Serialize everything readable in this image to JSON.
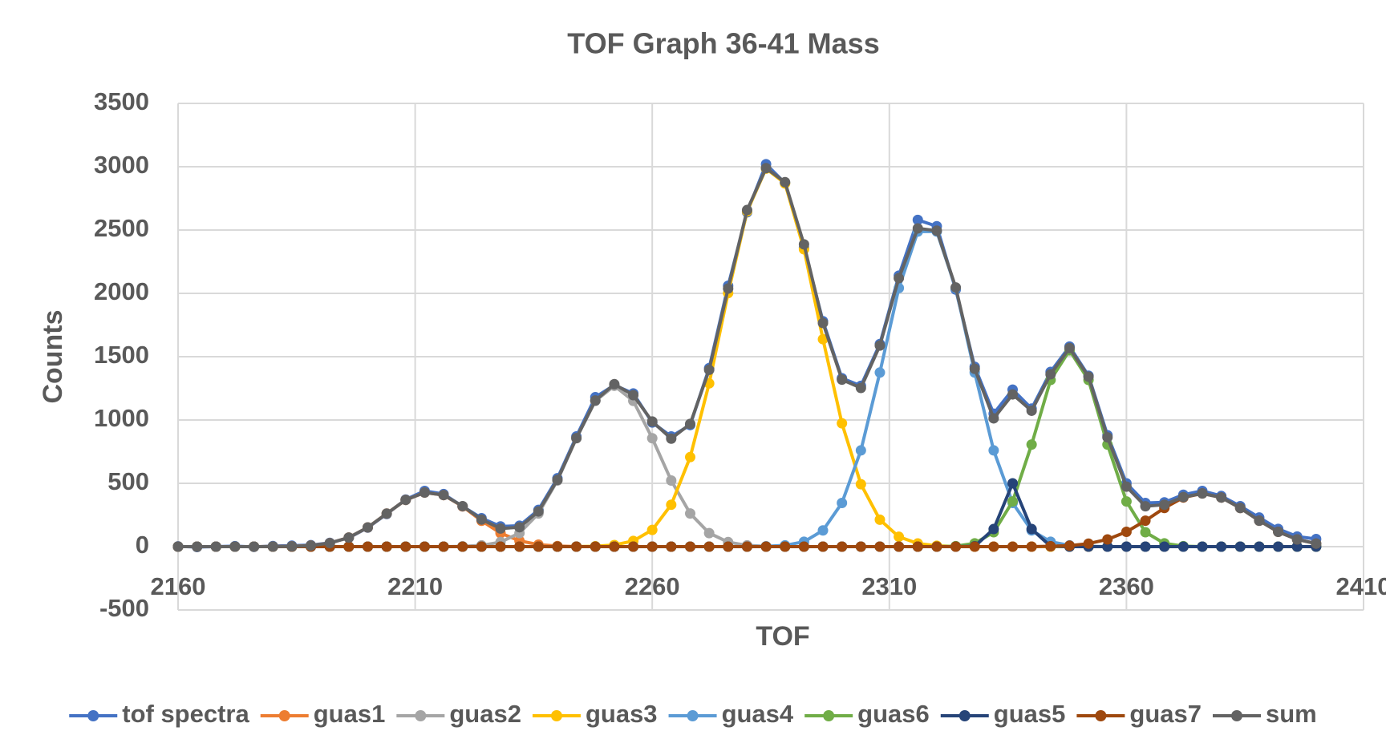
{
  "chart_data": {
    "type": "line",
    "title": "TOF Graph 36-41 Mass",
    "x_label": "TOF",
    "y_label": "Counts",
    "x": [
      2160,
      2164,
      2168,
      2172,
      2176,
      2180,
      2184,
      2188,
      2192,
      2196,
      2200,
      2204,
      2208,
      2212,
      2216,
      2220,
      2224,
      2228,
      2232,
      2236,
      2240,
      2244,
      2248,
      2252,
      2256,
      2260,
      2264,
      2268,
      2272,
      2276,
      2280,
      2284,
      2288,
      2292,
      2296,
      2300,
      2304,
      2308,
      2312,
      2316,
      2320,
      2324,
      2328,
      2332,
      2336,
      2340,
      2344,
      2348,
      2352,
      2356,
      2360,
      2364,
      2368,
      2372,
      2376,
      2380,
      2384,
      2388,
      2392,
      2396,
      2400
    ],
    "xlim": [
      2160,
      2410
    ],
    "xticks": [
      2160,
      2210,
      2260,
      2310,
      2360,
      2410
    ],
    "ylim": [
      -500,
      3500
    ],
    "yticks": [
      -500,
      0,
      500,
      1000,
      1500,
      2000,
      2500,
      3000,
      3500
    ],
    "grid": true,
    "legend": "bottom",
    "series": [
      {
        "name": "tof spectra",
        "color": "#4472c4",
        "values": [
          2,
          -3,
          0,
          4,
          -2,
          5,
          8,
          12,
          30,
          70,
          150,
          258,
          372,
          440,
          415,
          318,
          225,
          160,
          165,
          290,
          540,
          870,
          1180,
          1275,
          1210,
          980,
          870,
          960,
          1410,
          2060,
          2640,
          3020,
          2870,
          2360,
          1780,
          1330,
          1270,
          1600,
          2140,
          2580,
          2530,
          2030,
          1420,
          1050,
          1240,
          1090,
          1380,
          1580,
          1350,
          880,
          500,
          345,
          350,
          410,
          440,
          400,
          320,
          230,
          140,
          80,
          60
        ]
      },
      {
        "name": "guas1",
        "color": "#ed7d31",
        "values": [
          0,
          0,
          0,
          0,
          0,
          1,
          2,
          9,
          28,
          72,
          152,
          261,
          369,
          427,
          407,
          318,
          204,
          107,
          46,
          16,
          5,
          1,
          0,
          0,
          0,
          0,
          0,
          0,
          0,
          0,
          0,
          0,
          0,
          0,
          0,
          0,
          0,
          0,
          0,
          0,
          0,
          0,
          0,
          0,
          0,
          0,
          0,
          0,
          0,
          0,
          0,
          0,
          0,
          0,
          0,
          0,
          0,
          0,
          0,
          0,
          0
        ]
      },
      {
        "name": "guas2",
        "color": "#a5a5a5",
        "values": [
          0,
          0,
          0,
          0,
          0,
          0,
          0,
          0,
          0,
          0,
          0,
          0,
          0,
          0,
          0,
          2,
          10,
          36,
          107,
          262,
          522,
          856,
          1151,
          1270,
          1151,
          856,
          522,
          262,
          107,
          36,
          10,
          2,
          0,
          0,
          0,
          0,
          0,
          0,
          0,
          0,
          0,
          0,
          0,
          0,
          0,
          0,
          0,
          0,
          0,
          0,
          0,
          0,
          0,
          0,
          0,
          0,
          0,
          0,
          0,
          0,
          0
        ]
      },
      {
        "name": "guas3",
        "color": "#ffc000",
        "values": [
          0,
          0,
          0,
          0,
          0,
          0,
          0,
          0,
          0,
          0,
          0,
          0,
          0,
          0,
          0,
          0,
          0,
          0,
          0,
          0,
          0,
          0,
          3,
          13,
          45,
          132,
          331,
          707,
          1289,
          2002,
          2648,
          2985,
          2868,
          2348,
          1638,
          974,
          493,
          213,
          78,
          25,
          7,
          1,
          0,
          0,
          0,
          0,
          0,
          0,
          0,
          0,
          0,
          0,
          0,
          0,
          0,
          0,
          0,
          0,
          0,
          0,
          0
        ]
      },
      {
        "name": "guas4",
        "color": "#5b9bd5",
        "values": [
          0,
          0,
          0,
          0,
          0,
          0,
          0,
          0,
          0,
          0,
          0,
          0,
          0,
          0,
          0,
          0,
          0,
          0,
          0,
          0,
          0,
          0,
          0,
          0,
          0,
          0,
          0,
          0,
          0,
          0,
          0,
          2,
          10,
          39,
          128,
          345,
          760,
          1375,
          2042,
          2488,
          2488,
          2042,
          1375,
          760,
          345,
          128,
          39,
          10,
          2,
          0,
          0,
          0,
          0,
          0,
          0,
          0,
          0,
          0,
          0,
          0,
          0
        ]
      },
      {
        "name": "guas6",
        "color": "#70ad47",
        "values": [
          0,
          0,
          0,
          0,
          0,
          0,
          0,
          0,
          0,
          0,
          0,
          0,
          0,
          0,
          0,
          0,
          0,
          0,
          0,
          0,
          0,
          0,
          0,
          0,
          0,
          0,
          0,
          0,
          0,
          0,
          0,
          0,
          0,
          0,
          0,
          0,
          0,
          0,
          0,
          0,
          0,
          4,
          26,
          114,
          357,
          806,
          1316,
          1550,
          1316,
          806,
          357,
          114,
          26,
          4,
          0,
          0,
          0,
          0,
          0,
          0,
          0
        ]
      },
      {
        "name": "guas5",
        "color": "#264478",
        "values": [
          0,
          0,
          0,
          0,
          0,
          0,
          0,
          0,
          0,
          0,
          0,
          0,
          0,
          0,
          0,
          0,
          0,
          0,
          0,
          0,
          0,
          0,
          0,
          0,
          0,
          0,
          0,
          0,
          0,
          0,
          0,
          0,
          0,
          0,
          0,
          0,
          0,
          0,
          0,
          0,
          0,
          0,
          3,
          139,
          500,
          139,
          3,
          0,
          0,
          0,
          0,
          0,
          0,
          0,
          0,
          0,
          0,
          0,
          0,
          0,
          0
        ]
      },
      {
        "name": "guas7",
        "color": "#9e480e",
        "values": [
          0,
          0,
          0,
          0,
          0,
          0,
          0,
          0,
          0,
          0,
          0,
          0,
          0,
          0,
          0,
          0,
          0,
          0,
          0,
          0,
          0,
          0,
          0,
          0,
          0,
          0,
          0,
          0,
          0,
          0,
          0,
          0,
          0,
          0,
          0,
          0,
          0,
          0,
          0,
          0,
          0,
          0,
          0,
          0,
          0,
          0,
          3,
          8,
          24,
          57,
          117,
          205,
          305,
          388,
          420,
          388,
          305,
          205,
          117,
          57,
          24
        ]
      },
      {
        "name": "sum",
        "color": "#636363",
        "values": [
          0,
          0,
          0,
          0,
          0,
          1,
          2,
          9,
          28,
          72,
          152,
          261,
          369,
          427,
          407,
          320,
          214,
          143,
          153,
          278,
          527,
          857,
          1154,
          1283,
          1196,
          988,
          853,
          969,
          1396,
          2038,
          2658,
          2989,
          2878,
          2387,
          1766,
          1319,
          1253,
          1588,
          2120,
          2513,
          2495,
          2047,
          1404,
          1013,
          1202,
          1073,
          1361,
          1568,
          1342,
          863,
          474,
          319,
          331,
          392,
          420,
          388,
          305,
          205,
          117,
          57,
          24
        ]
      }
    ]
  }
}
